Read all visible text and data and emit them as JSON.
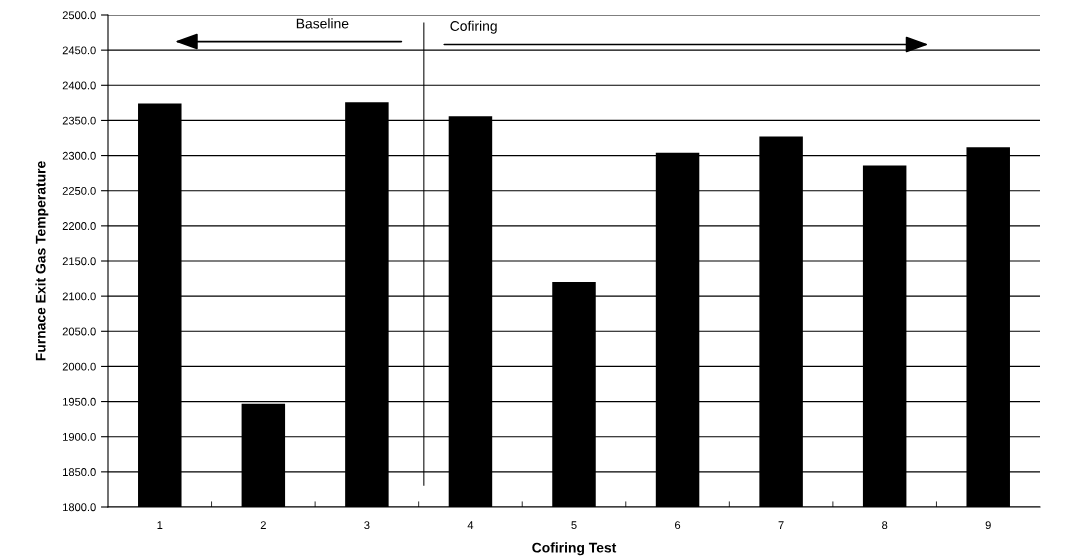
{
  "chart_data": {
    "type": "bar",
    "xlabel": "Cofiring Test",
    "ylabel": "Furnace Exit Gas Temperature",
    "categories": [
      "1",
      "2",
      "3",
      "4",
      "5",
      "6",
      "7",
      "8",
      "9"
    ],
    "values": [
      2374,
      1947,
      2376,
      2356,
      2120,
      2304,
      2327,
      2286,
      2312
    ],
    "color": "#000000",
    "ylim": [
      1800,
      2500
    ],
    "yticks": [
      {
        "value": 1800,
        "label": "1800.0"
      },
      {
        "value": 1850,
        "label": "1850.0"
      },
      {
        "value": 1900,
        "label": "1900.0"
      },
      {
        "value": 1950,
        "label": "1950.0"
      },
      {
        "value": 2000,
        "label": "2000.0"
      },
      {
        "value": 2050,
        "label": "2050.0"
      },
      {
        "value": 2100,
        "label": "2100.0"
      },
      {
        "value": 2150,
        "label": "2150.0"
      },
      {
        "value": 2200,
        "label": "2200.0"
      },
      {
        "value": 2250,
        "label": "2250.0"
      },
      {
        "value": 2300,
        "label": "2300.0"
      },
      {
        "value": 2350,
        "label": "2350.0"
      },
      {
        "value": 2400,
        "label": "2400.0"
      },
      {
        "value": 2450,
        "label": "2450.0"
      },
      {
        "value": 2500,
        "label": "2500.0"
      }
    ],
    "grid": "y",
    "annotations": [
      "Baseline",
      "Cofiring"
    ]
  }
}
